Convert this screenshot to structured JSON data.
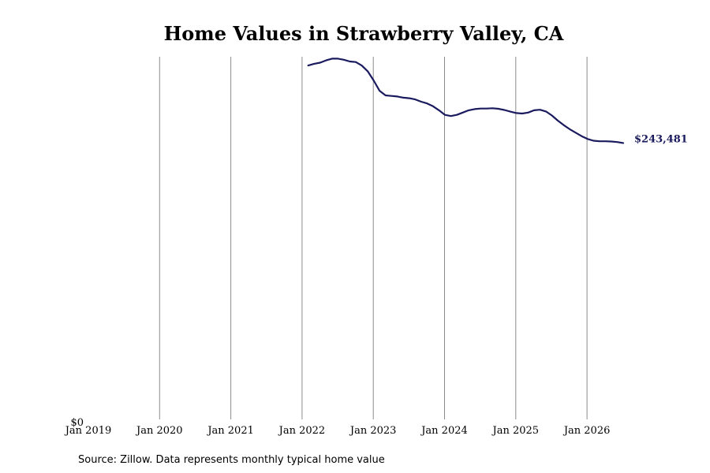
{
  "chart_data": {
    "type": "line",
    "title": "Home Values in Strawberry Valley, CA",
    "xlabel": "",
    "ylabel": "",
    "x_ticks": [
      "Jan 2019",
      "Jan 2020",
      "Jan 2021",
      "Jan 2022",
      "Jan 2023",
      "Jan 2024",
      "Jan 2025",
      "Jan 2026"
    ],
    "y_ticks": [
      "$0"
    ],
    "ylim": [
      0,
      320000
    ],
    "grid": "vertical",
    "line_color": "#1a1a5e",
    "series": [
      {
        "x": [
          "2022-02",
          "2022-03",
          "2022-04",
          "2022-05",
          "2022-06",
          "2022-07",
          "2022-08",
          "2022-09",
          "2022-10",
          "2022-11",
          "2022-12",
          "2023-01",
          "2023-02",
          "2023-03",
          "2023-04",
          "2023-05",
          "2023-06",
          "2023-07",
          "2023-08",
          "2023-09",
          "2023-10",
          "2023-11",
          "2023-12",
          "2024-01",
          "2024-02",
          "2024-03",
          "2024-04",
          "2024-05",
          "2024-06",
          "2024-07",
          "2024-08",
          "2024-09",
          "2024-10",
          "2024-11",
          "2024-12",
          "2025-01",
          "2025-02",
          "2025-03",
          "2025-04",
          "2025-05",
          "2025-06",
          "2025-07",
          "2025-08",
          "2025-09",
          "2025-10",
          "2025-11",
          "2025-12",
          "2026-01",
          "2026-02",
          "2026-03",
          "2026-04",
          "2026-05",
          "2026-06",
          "2026-07"
        ],
        "values": [
          311000,
          312500,
          313500,
          315500,
          317000,
          317000,
          316000,
          314500,
          314000,
          311000,
          306000,
          298000,
          289000,
          285000,
          284500,
          284000,
          283000,
          282500,
          281500,
          279500,
          278000,
          275500,
          272000,
          268000,
          267000,
          268000,
          270000,
          272000,
          273000,
          273500,
          273500,
          273800,
          273300,
          272300,
          270800,
          269600,
          269200,
          270000,
          272000,
          272500,
          271000,
          267500,
          263000,
          259000,
          255500,
          252500,
          249500,
          247000,
          245500,
          245000,
          245000,
          244800,
          244300,
          243481
        ]
      }
    ],
    "end_label": "$243,481"
  },
  "source_note": "Source: Zillow. Data represents monthly typical home value"
}
